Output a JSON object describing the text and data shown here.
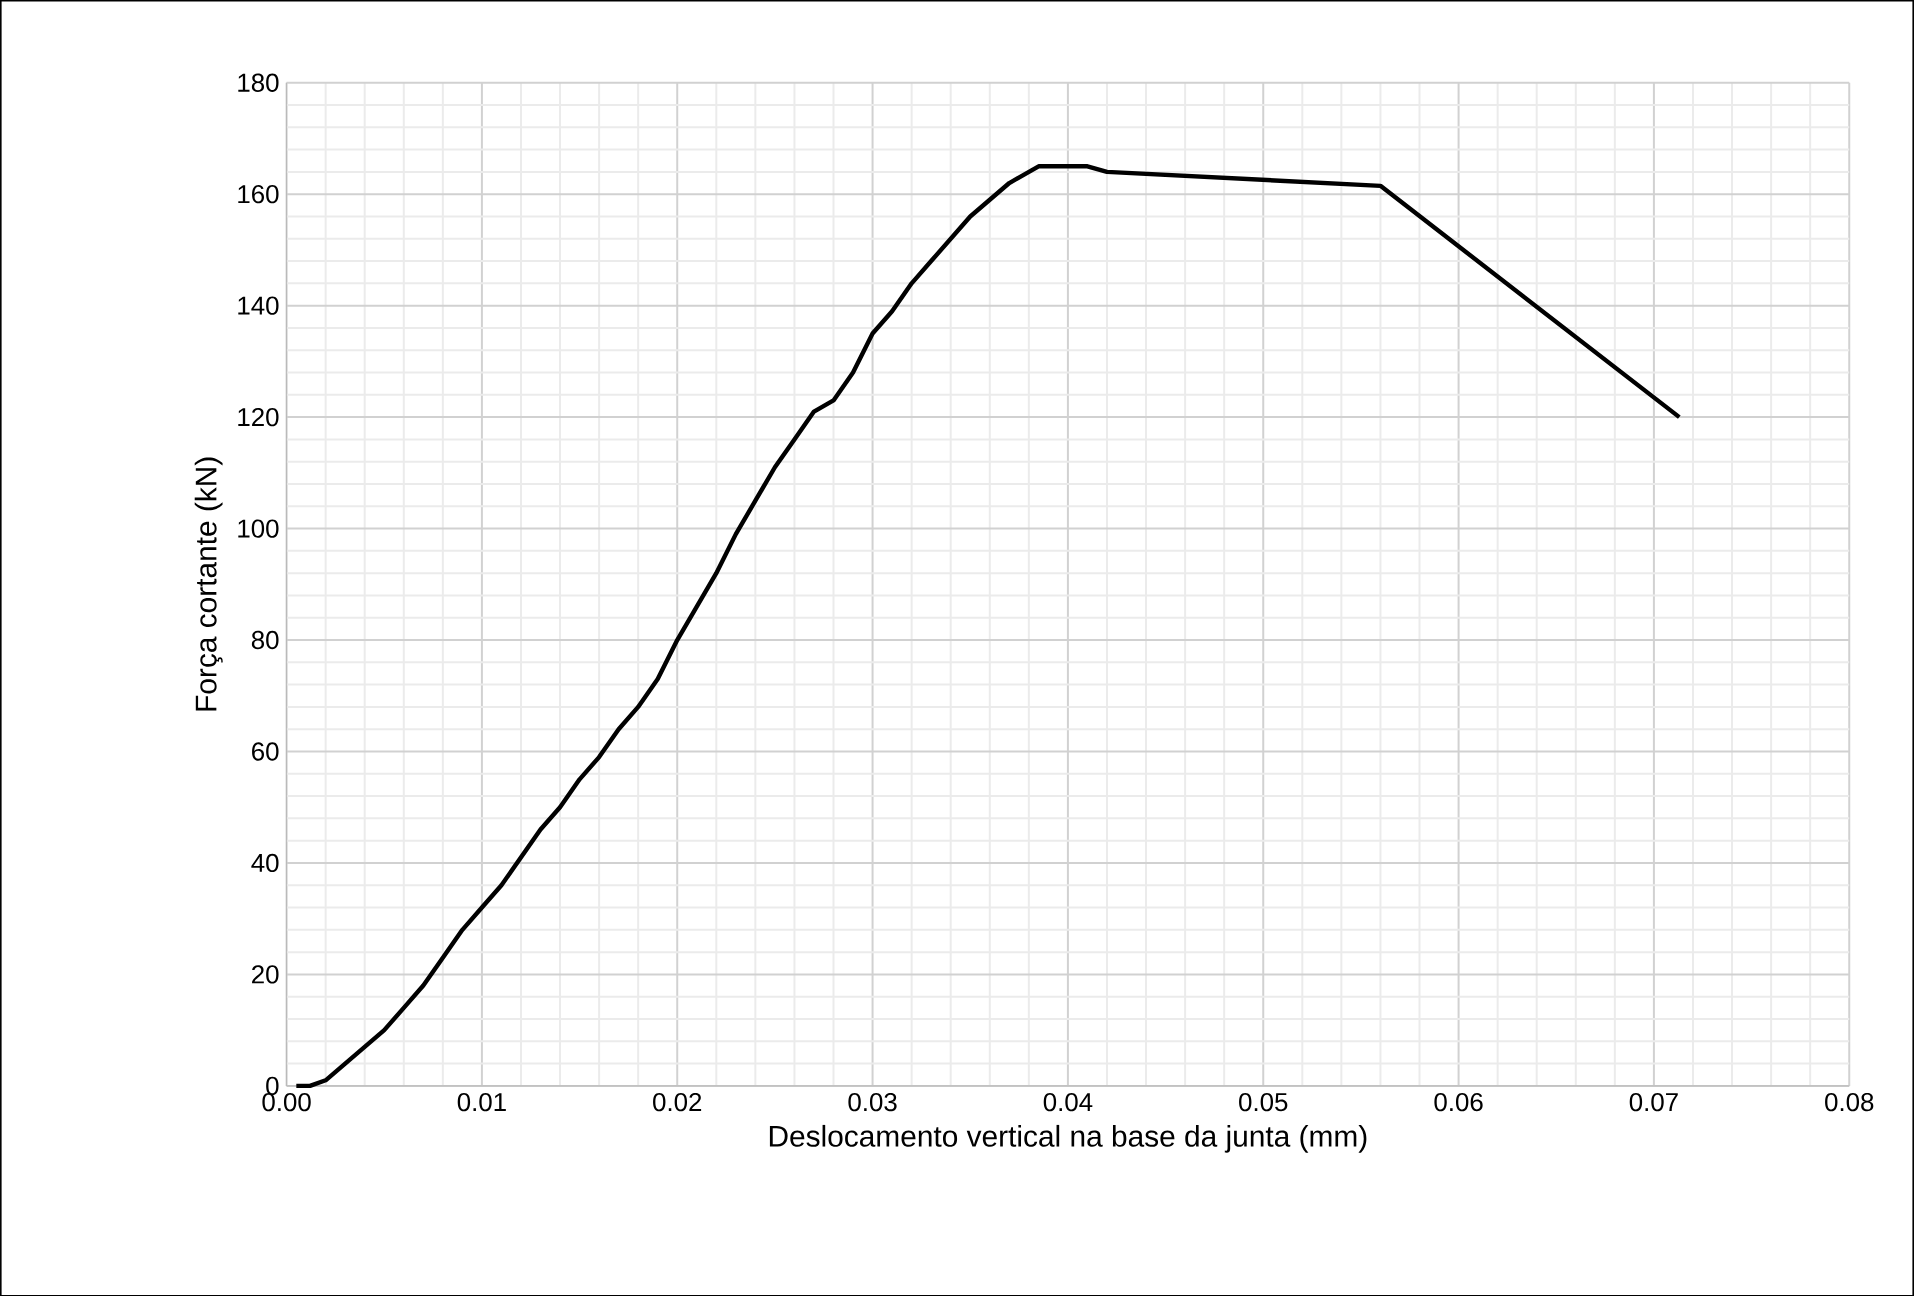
{
  "chart_data": {
    "type": "line",
    "xlabel": "Deslocamento vertical na base da junta (mm)",
    "ylabel": "Força cortante (kN)",
    "x": [
      0.0005,
      0.0012,
      0.002,
      0.003,
      0.004,
      0.005,
      0.006,
      0.007,
      0.008,
      0.009,
      0.01,
      0.011,
      0.012,
      0.013,
      0.014,
      0.015,
      0.016,
      0.017,
      0.018,
      0.019,
      0.02,
      0.021,
      0.022,
      0.023,
      0.024,
      0.025,
      0.026,
      0.027,
      0.028,
      0.029,
      0.03,
      0.031,
      0.032,
      0.033,
      0.034,
      0.035,
      0.036,
      0.037,
      0.0385,
      0.041,
      0.042,
      0.056,
      0.0713
    ],
    "series": [
      {
        "color": "#000000",
        "values": [
          0,
          0,
          1,
          4,
          7,
          10,
          14,
          18,
          23,
          28,
          32,
          36,
          41,
          46,
          50,
          55,
          59,
          64,
          68,
          73,
          80,
          86,
          92,
          99,
          105,
          111,
          116,
          121,
          123,
          128,
          135,
          139,
          144,
          148,
          152,
          156,
          159,
          162,
          165,
          165,
          164,
          161.5,
          120
        ]
      }
    ],
    "xlim": [
      0,
      0.08
    ],
    "ylim": [
      0,
      180
    ],
    "xticks": [
      {
        "value": 0,
        "label": "0.00"
      },
      {
        "value": 0.01,
        "label": "0.01"
      },
      {
        "value": 0.02,
        "label": "0.02"
      },
      {
        "value": 0.03,
        "label": "0.03"
      },
      {
        "value": 0.04,
        "label": "0.04"
      },
      {
        "value": 0.05,
        "label": "0.05"
      },
      {
        "value": 0.06,
        "label": "0.06"
      },
      {
        "value": 0.07,
        "label": "0.07"
      },
      {
        "value": 0.08,
        "label": "0.08"
      }
    ],
    "yticks": [
      0,
      20,
      40,
      60,
      80,
      100,
      120,
      140,
      160,
      180
    ],
    "grid": true,
    "marker": "none",
    "line_style": "solid"
  }
}
